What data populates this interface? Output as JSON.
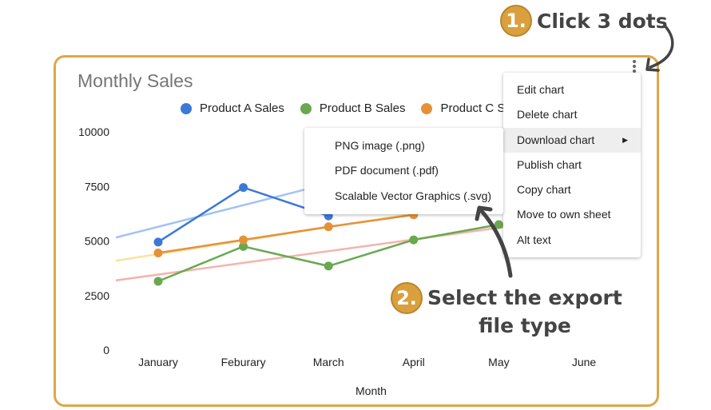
{
  "annotations": {
    "step1": {
      "number": "1.",
      "text": "Click 3 dots"
    },
    "step2": {
      "number": "2.",
      "line1": "Select the export",
      "line2": "file type"
    },
    "accent": "#e0a646"
  },
  "chart_menu": {
    "icon": "more-vert-icon",
    "items": [
      "Edit chart",
      "Delete chart",
      "Download chart",
      "Publish chart",
      "Copy chart",
      "Move to own sheet",
      "Alt text"
    ],
    "active": "Download chart"
  },
  "download_submenu": {
    "items": [
      "PNG image (.png)",
      "PDF document (.pdf)",
      "Scalable Vector Graphics (.svg)"
    ]
  },
  "chart_data": {
    "type": "line",
    "title": "Monthly Sales",
    "xlabel": "Month",
    "ylabel": "",
    "ylim": [
      0,
      10000
    ],
    "yticks": [
      "0",
      "2500",
      "5000",
      "7500",
      "10000"
    ],
    "categories": [
      "January",
      "Feburary",
      "March",
      "April",
      "May",
      "June"
    ],
    "legend": "top",
    "grid": false,
    "series": [
      {
        "name": "Product A Sales",
        "color": "#3c78d8",
        "values": [
          4950,
          7450,
          6150,
          null,
          null,
          null
        ],
        "trendline": {
          "color": "#a4c2f4",
          "start": 5650,
          "end": 10600
        }
      },
      {
        "name": "Product B Sales",
        "color": "#6aa84f",
        "values": [
          3150,
          4750,
          3850,
          5050,
          5750,
          null
        ],
        "trendline": {
          "color": "#f4b3ad",
          "start": 3460,
          "end": 6140
        }
      },
      {
        "name": "Product C Sales",
        "color": "#e69138",
        "values": [
          4450,
          5050,
          5650,
          6200,
          null,
          null
        ],
        "trendline": {
          "color": "#fbe29c",
          "start": 4400,
          "end": 7480
        }
      }
    ]
  }
}
